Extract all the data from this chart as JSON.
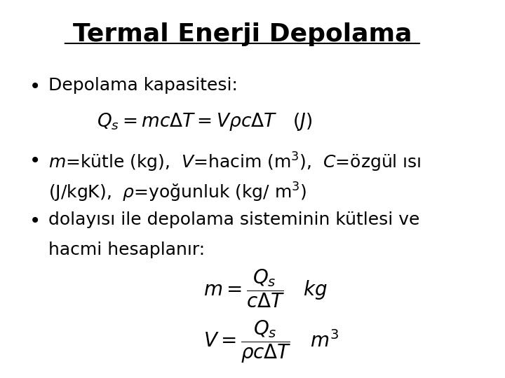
{
  "title": "Termal Enerji Depolama",
  "bg_color": "#ffffff",
  "text_color": "#000000",
  "title_fontsize": 26,
  "body_fontsize": 18,
  "math_fontsize": 18,
  "bullet1": "Depolama kapasitesi:",
  "formula1": "$Q_s = mc\\Delta T = V\\rho c\\Delta T \\quad (J)$",
  "bullet2_line1": "$m$=kütle (kg),  $V$=hacim (m$^3$),  $C$=özgül ısı",
  "bullet2_line2": "(J/kgK),  $\\rho$=yoğunluk (kg/ m$^3$)",
  "bullet3_line1": "dolayısı ile depolama sisteminin kütlesi ve",
  "bullet3_line2": "hacmi hesaplanır:",
  "formula2": "$m = \\dfrac{Q_s}{c\\Delta T} \\quad kg$",
  "formula3": "$V = \\dfrac{Q_s}{\\rho c\\Delta T} \\quad m^3$"
}
